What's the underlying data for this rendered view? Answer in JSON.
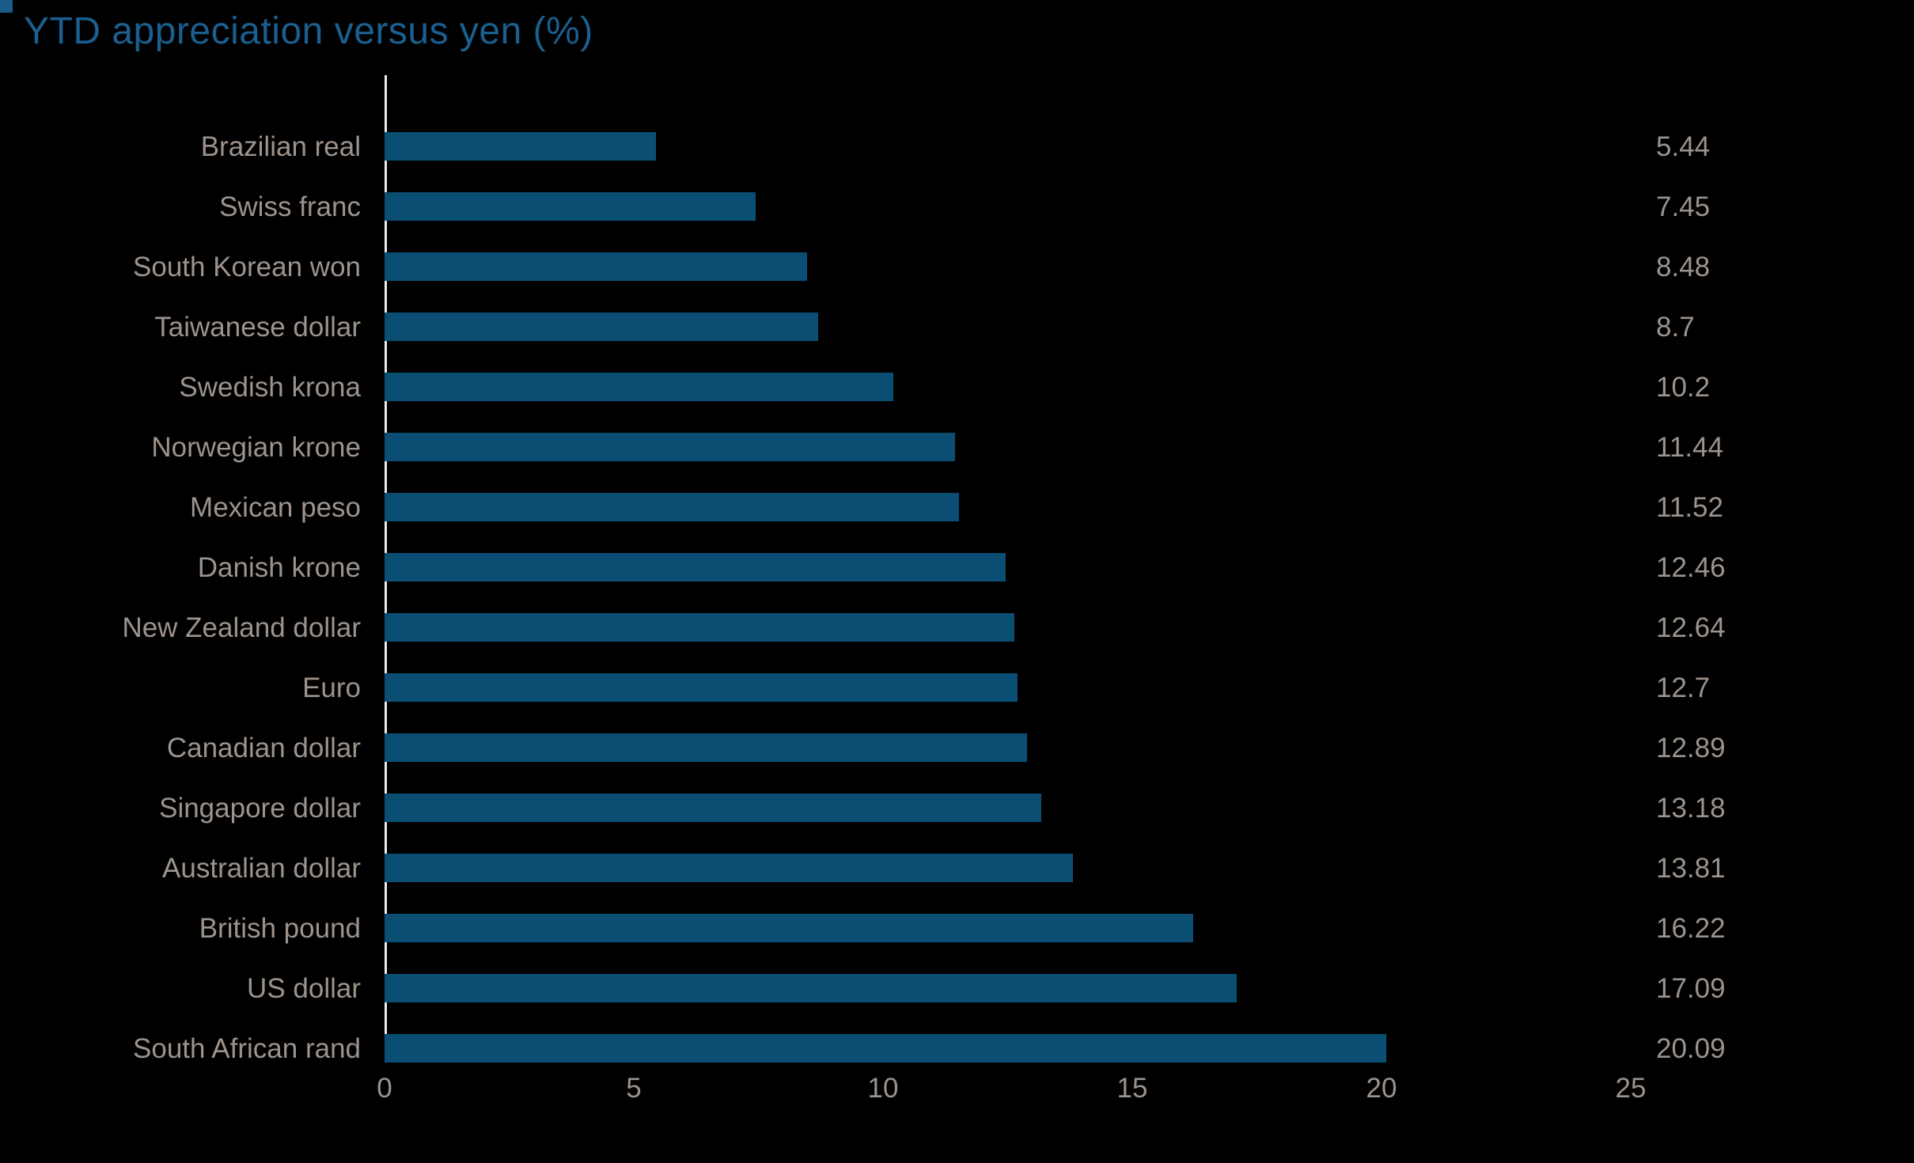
{
  "page": {
    "background_color": "#000000",
    "corner_accent_color": "#1a5c8a"
  },
  "header": {
    "title": "YTD appreciation versus yen (%)",
    "title_color": "#1a5f8f"
  },
  "chart_data": {
    "type": "bar",
    "orientation": "horizontal",
    "title": "YTD appreciation versus yen (%)",
    "categories": [
      "Brazilian real",
      "Swiss franc",
      "South Korean won",
      "Taiwanese dollar",
      "Swedish krona",
      "Norwegian krone",
      "Mexican peso",
      "Danish krone",
      "New Zealand dollar",
      "Euro",
      "Canadian dollar",
      "Singapore dollar",
      "Australian dollar",
      "British pound",
      "US dollar",
      "South African rand"
    ],
    "values": [
      5.44,
      7.45,
      8.48,
      8.7,
      10.2,
      11.44,
      11.52,
      12.46,
      12.64,
      12.7,
      12.89,
      13.18,
      13.81,
      16.22,
      17.09,
      20.09
    ],
    "value_labels": [
      "5.44",
      "7.45",
      "8.48",
      "8.7",
      "10.2",
      "11.44",
      "11.52",
      "12.46",
      "12.64",
      "12.7",
      "12.89",
      "13.18",
      "13.81",
      "16.22",
      "17.09",
      "20.09"
    ],
    "xlabel": "",
    "ylabel": "",
    "xlim": [
      0,
      25
    ],
    "x_ticks": [
      "0",
      "5",
      "10",
      "15",
      "20",
      "25"
    ],
    "x_tick_values": [
      0,
      5,
      10,
      15,
      20,
      25
    ],
    "grid": false,
    "legend": false,
    "bar_color": "#0b4e74",
    "label_color": "#9d938c",
    "axis_line_color": "#ececec",
    "background_color": "#000000"
  }
}
